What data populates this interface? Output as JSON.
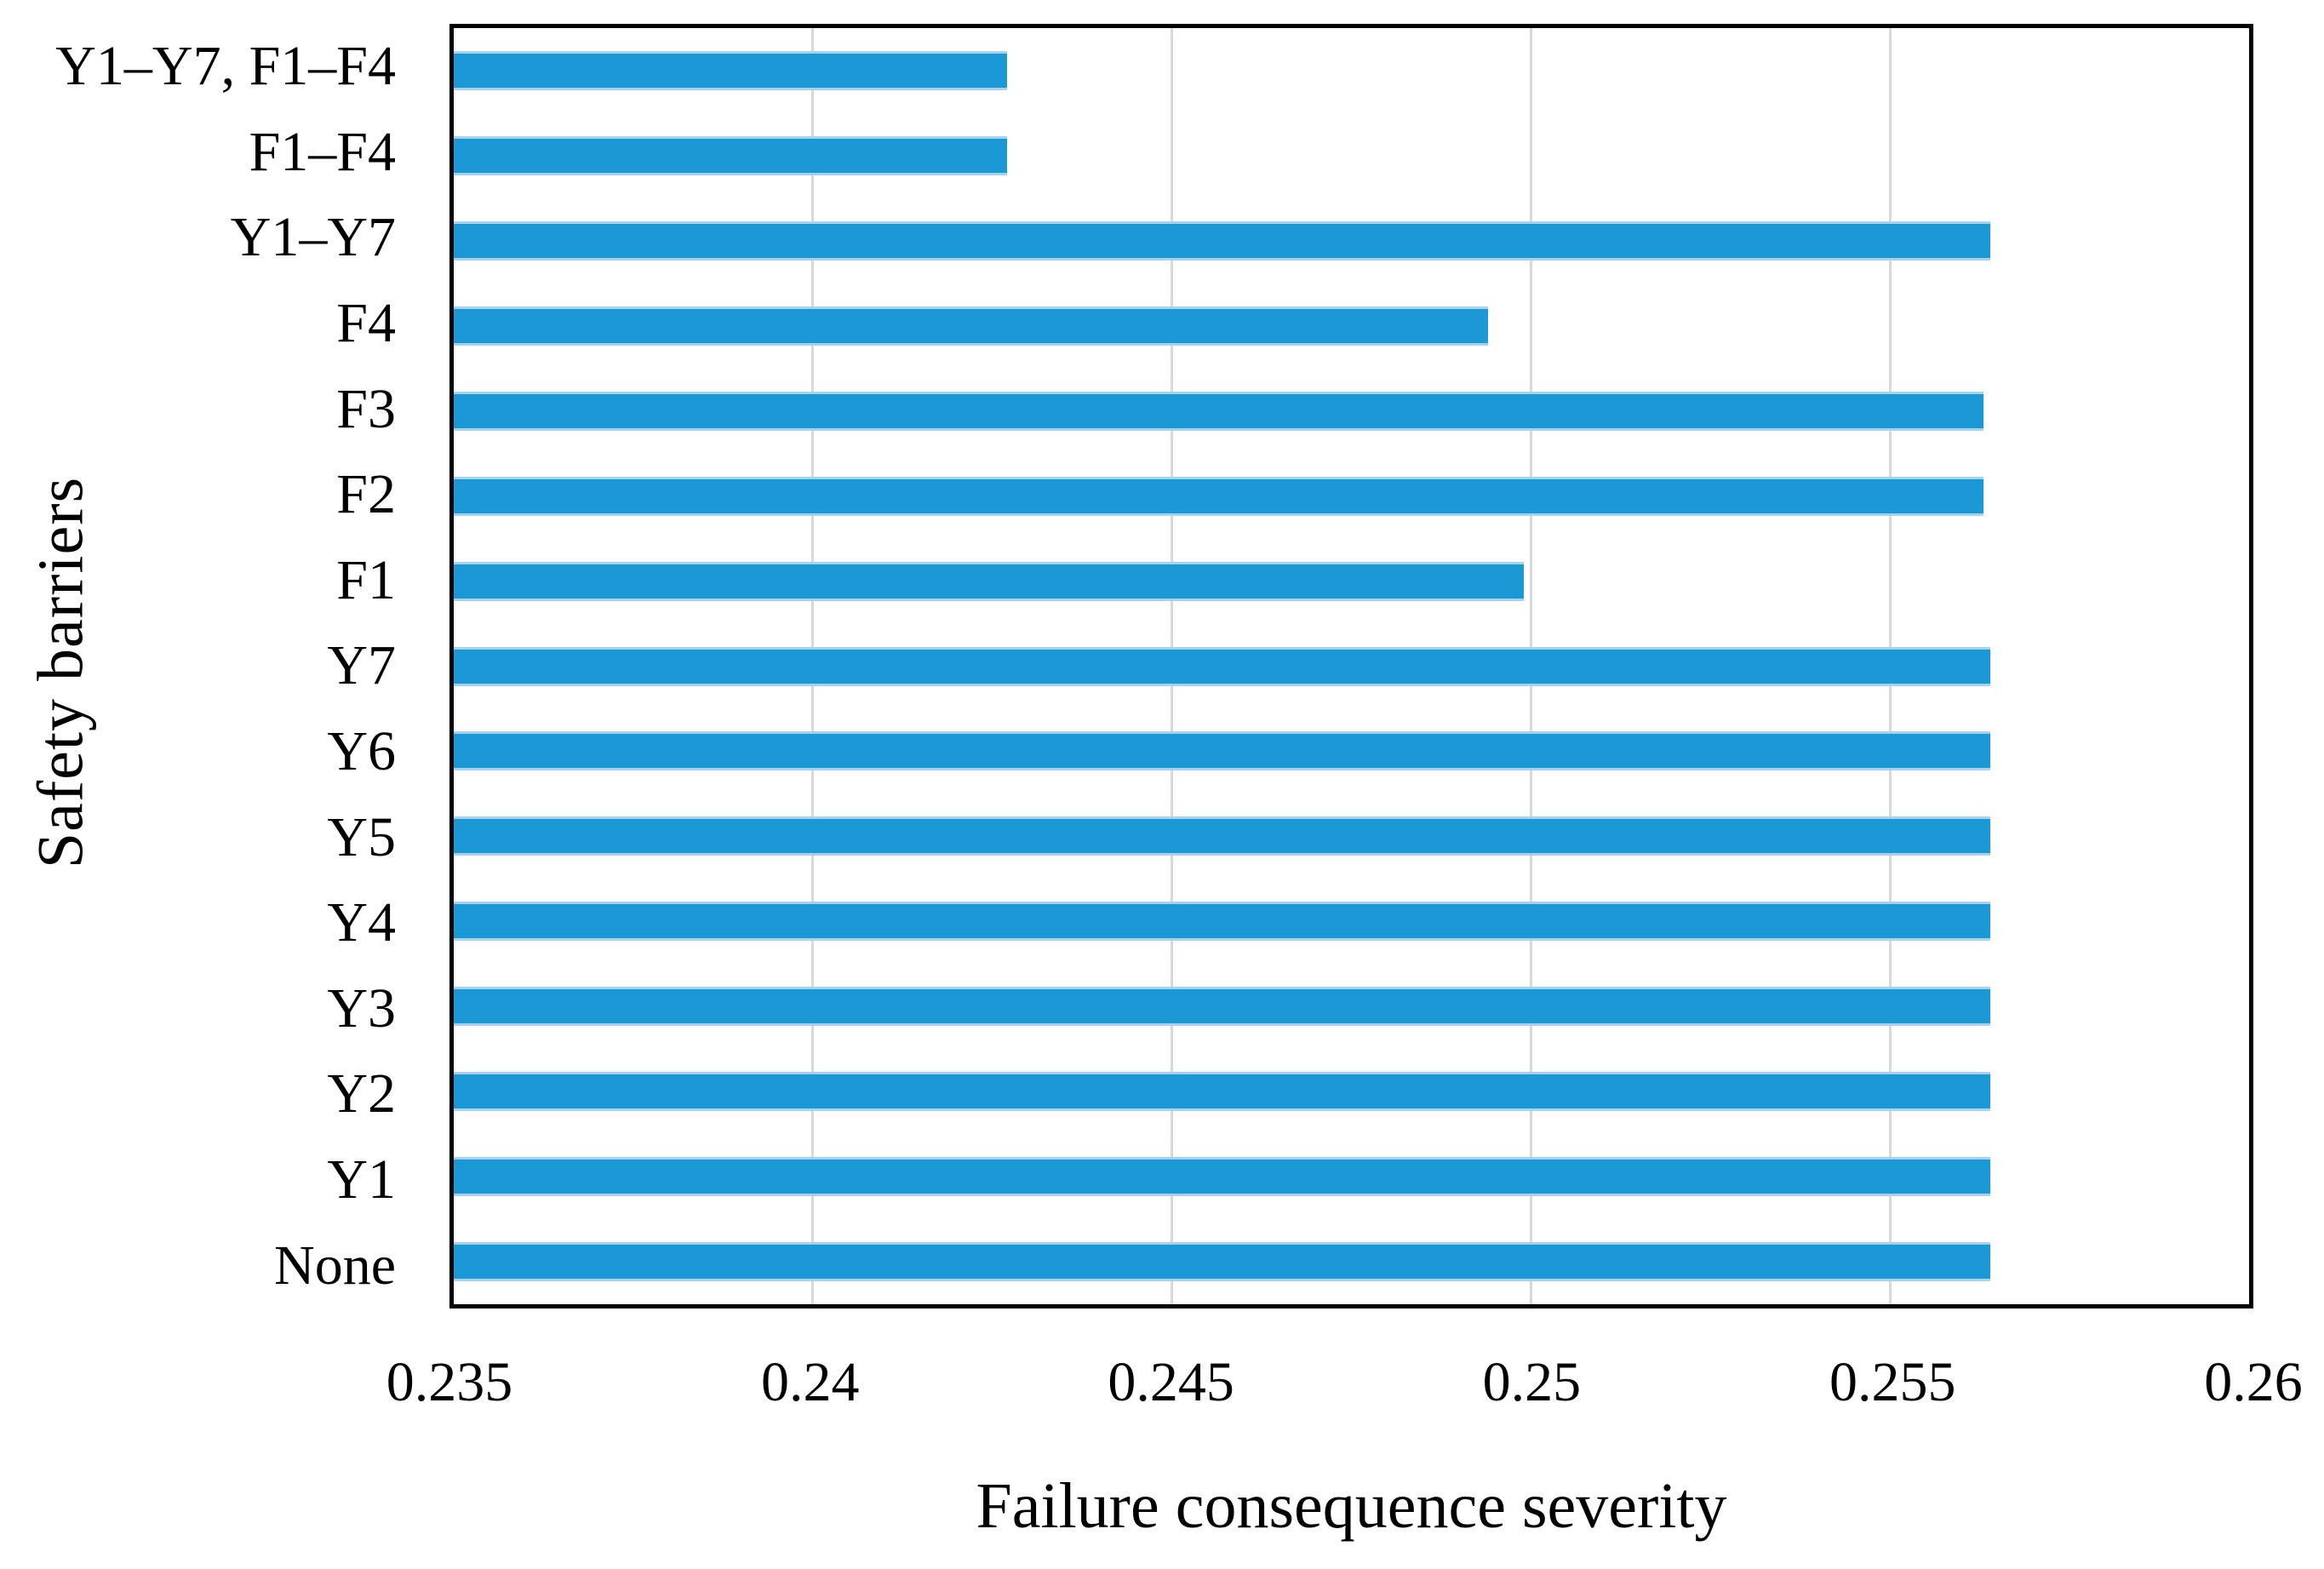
{
  "figure": {
    "background": "#ffffff",
    "border_color": "#000000",
    "gridline_color": "#d9d9d9",
    "bar_color": "#1b98d6",
    "bar_edge_color": "#a6d2ef"
  },
  "chart_data": {
    "type": "bar",
    "orientation": "horizontal",
    "title": "",
    "xlabel": "Failure consequence severity",
    "ylabel": "Safety barriers",
    "xlim": [
      0.235,
      0.26
    ],
    "xticks": [
      0.235,
      0.24,
      0.245,
      0.25,
      0.255,
      0.26
    ],
    "xtick_labels": [
      "0.235",
      "0.24",
      "0.245",
      "0.25",
      "0.255",
      "0.26"
    ],
    "grid": true,
    "legend": false,
    "categories_top_to_bottom": [
      "Y1–Y7, F1–F4",
      "F1–F4",
      "Y1–Y7",
      "F4",
      "F3",
      "F2",
      "F1",
      "Y7",
      "Y6",
      "Y5",
      "Y4",
      "Y3",
      "Y2",
      "Y1",
      "None"
    ],
    "values_top_to_bottom": [
      0.2427,
      0.2427,
      0.2564,
      0.2494,
      0.2563,
      0.2563,
      0.2499,
      0.2564,
      0.2564,
      0.2564,
      0.2564,
      0.2564,
      0.2564,
      0.2564,
      0.2564
    ]
  }
}
